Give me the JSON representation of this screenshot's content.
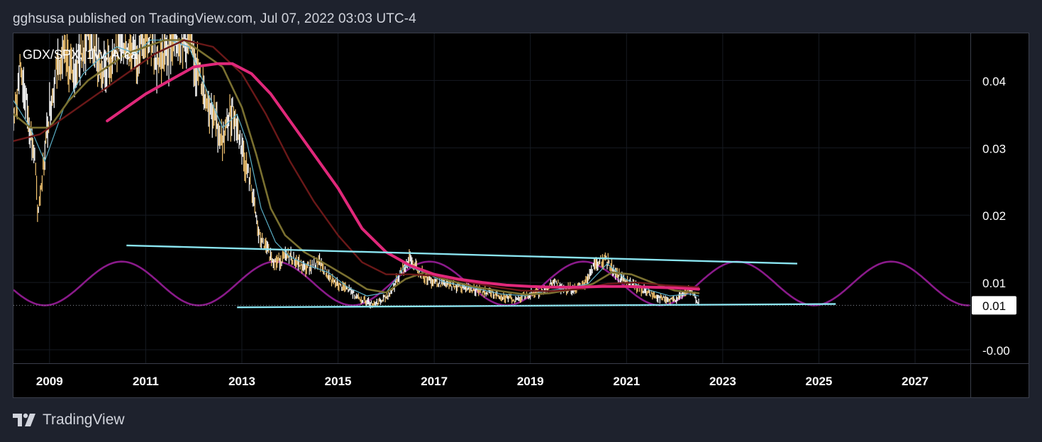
{
  "header": {
    "published_text": "gghsusa published on TradingView.com, Jul 07, 2022 03:03 UTC-4"
  },
  "footer": {
    "brand": "TradingView",
    "logo_icon": "tradingview-logo-icon"
  },
  "chart_data": {
    "type": "line",
    "title": "GDX/SPX, 1W, Arca",
    "x_axis": {
      "ticks": [
        "2009",
        "2011",
        "2013",
        "2015",
        "2017",
        "2019",
        "2021",
        "2023",
        "2025",
        "2027"
      ],
      "range": [
        2008.25,
        2028.15
      ]
    },
    "y_axis": {
      "ticks": [
        {
          "value": 0.04,
          "label": "0.04"
        },
        {
          "value": 0.03,
          "label": "0.03"
        },
        {
          "value": 0.02,
          "label": "0.02"
        },
        {
          "value": 0.01,
          "label": "0.01"
        },
        {
          "value": 0.0,
          "label": "-0.00"
        }
      ],
      "range": [
        -0.002,
        0.047
      ],
      "position": "right"
    },
    "last_price": {
      "value": 0.0066,
      "label": "0.01"
    },
    "grid": true,
    "series": [
      {
        "style": "candles",
        "color": "#f0a830",
        "x": [
          2008.25,
          2008.4,
          2008.55,
          2008.7,
          2008.75,
          2008.85,
          2009.0,
          2009.2,
          2009.5,
          2009.8,
          2010.1,
          2010.5,
          2010.8,
          2011.0,
          2011.3,
          2011.6,
          2011.9,
          2012.1,
          2012.4,
          2012.6,
          2012.8,
          2013.0,
          2013.2,
          2013.35,
          2013.5,
          2013.7,
          2014.0,
          2014.3,
          2014.6,
          2014.9,
          2015.2,
          2015.5,
          2015.7,
          2015.9,
          2016.1,
          2016.3,
          2016.5,
          2016.7,
          2016.9,
          2017.2,
          2017.6,
          2018.0,
          2018.4,
          2018.7,
          2018.9,
          2019.2,
          2019.5,
          2019.7,
          2019.9,
          2020.1,
          2020.3,
          2020.5,
          2020.6,
          2020.8,
          2021.0,
          2021.3,
          2021.6,
          2021.9,
          2022.1,
          2022.3,
          2022.5
        ],
        "y": [
          0.034,
          0.042,
          0.035,
          0.028,
          0.02,
          0.026,
          0.036,
          0.044,
          0.041,
          0.047,
          0.041,
          0.046,
          0.044,
          0.046,
          0.043,
          0.046,
          0.046,
          0.041,
          0.035,
          0.031,
          0.036,
          0.03,
          0.024,
          0.017,
          0.015,
          0.013,
          0.014,
          0.012,
          0.013,
          0.01,
          0.009,
          0.0075,
          0.0068,
          0.0072,
          0.0085,
          0.0115,
          0.0135,
          0.0115,
          0.0105,
          0.0098,
          0.0093,
          0.0087,
          0.008,
          0.0074,
          0.0082,
          0.0086,
          0.01,
          0.0092,
          0.009,
          0.0095,
          0.012,
          0.0135,
          0.013,
          0.0112,
          0.01,
          0.009,
          0.008,
          0.0072,
          0.0078,
          0.009,
          0.007
        ]
      },
      {
        "style": "line",
        "color": "#5bb0c8",
        "width": 1.2,
        "x": [
          2008.25,
          2008.6,
          2008.9,
          2009.3,
          2009.7,
          2010.0,
          2010.4,
          2010.8,
          2011.1,
          2011.5,
          2011.9,
          2012.3,
          2012.6,
          2012.9,
          2013.1,
          2013.4,
          2013.7,
          2014.0,
          2014.4,
          2014.8,
          2015.2,
          2015.6,
          2016.0,
          2016.4,
          2016.8,
          2017.2,
          2017.8,
          2018.4,
          2018.9,
          2019.3,
          2019.8,
          2020.2,
          2020.6,
          2021.0,
          2021.5,
          2021.9,
          2022.3,
          2022.5
        ],
        "y": [
          0.037,
          0.033,
          0.028,
          0.036,
          0.041,
          0.043,
          0.045,
          0.044,
          0.046,
          0.046,
          0.045,
          0.038,
          0.033,
          0.035,
          0.031,
          0.021,
          0.016,
          0.0138,
          0.0125,
          0.0115,
          0.0093,
          0.008,
          0.0085,
          0.0125,
          0.0115,
          0.0101,
          0.0092,
          0.0083,
          0.008,
          0.0087,
          0.0092,
          0.0098,
          0.0128,
          0.0104,
          0.0088,
          0.008,
          0.0083,
          0.008
        ]
      },
      {
        "style": "line",
        "color": "#7a7030",
        "width": 2.6,
        "x": [
          2008.25,
          2008.6,
          2009.0,
          2009.4,
          2009.8,
          2010.2,
          2010.6,
          2011.0,
          2011.4,
          2011.8,
          2012.2,
          2012.6,
          2013.0,
          2013.3,
          2013.6,
          2013.9,
          2014.3,
          2014.8,
          2015.2,
          2015.6,
          2016.0,
          2016.4,
          2016.8,
          2017.2,
          2017.8,
          2018.4,
          2018.9,
          2019.4,
          2019.9,
          2020.3,
          2020.7,
          2021.1,
          2021.6,
          2022.0,
          2022.4,
          2022.5
        ],
        "y": [
          0.035,
          0.033,
          0.033,
          0.037,
          0.04,
          0.042,
          0.044,
          0.045,
          0.046,
          0.046,
          0.044,
          0.042,
          0.036,
          0.029,
          0.021,
          0.017,
          0.0145,
          0.0125,
          0.0108,
          0.009,
          0.0085,
          0.0105,
          0.0115,
          0.0105,
          0.0094,
          0.0087,
          0.0082,
          0.0084,
          0.009,
          0.0098,
          0.0115,
          0.0112,
          0.0098,
          0.0088,
          0.0085,
          0.0084
        ]
      },
      {
        "style": "line",
        "color": "#6a1818",
        "width": 2.4,
        "x": [
          2008.25,
          2008.8,
          2009.4,
          2010.0,
          2010.6,
          2011.2,
          2011.8,
          2012.4,
          2013.0,
          2013.5,
          2014.0,
          2014.5,
          2015.0,
          2015.5,
          2016.0,
          2016.5,
          2017.0,
          2017.6,
          2018.2,
          2018.8,
          2019.4,
          2020.0,
          2020.6,
          2021.2,
          2021.8,
          2022.5
        ],
        "y": [
          0.031,
          0.032,
          0.035,
          0.038,
          0.041,
          0.044,
          0.046,
          0.045,
          0.041,
          0.035,
          0.028,
          0.022,
          0.017,
          0.013,
          0.0112,
          0.0112,
          0.011,
          0.0102,
          0.0094,
          0.0088,
          0.0087,
          0.009,
          0.0098,
          0.01,
          0.0096,
          0.0093
        ]
      },
      {
        "style": "line",
        "color": "#e0287a",
        "width": 4,
        "x": [
          2010.2,
          2010.6,
          2011.0,
          2011.5,
          2012.0,
          2012.5,
          2012.8,
          2013.2,
          2013.6,
          2014.0,
          2014.5,
          2015.0,
          2015.5,
          2016.0,
          2016.5,
          2017.0,
          2017.5,
          2018.0,
          2018.5,
          2019.0,
          2019.5,
          2020.0,
          2020.5,
          2021.0,
          2021.5,
          2022.0,
          2022.5
        ],
        "y": [
          0.034,
          0.036,
          0.038,
          0.04,
          0.042,
          0.0425,
          0.0425,
          0.041,
          0.038,
          0.034,
          0.029,
          0.024,
          0.018,
          0.0145,
          0.0125,
          0.0112,
          0.0105,
          0.01,
          0.0096,
          0.0094,
          0.0093,
          0.0093,
          0.0094,
          0.0094,
          0.0093,
          0.0092,
          0.009
        ]
      }
    ],
    "sine_wave": {
      "color": "#8a1a8a",
      "center": 0.00985,
      "amplitude": 0.00325,
      "period_years": 3.2,
      "peak_x": 2010.5,
      "x_range": [
        2008.25,
        2028.15
      ]
    },
    "trendlines": [
      {
        "color": "#8ae4f0",
        "x": [
          2010.6,
          2024.55
        ],
        "y": [
          0.0155,
          0.0128
        ]
      },
      {
        "color": "#8ae4f0",
        "x": [
          2012.9,
          2025.35
        ],
        "y": [
          0.0063,
          0.0068
        ]
      }
    ],
    "annotations": []
  }
}
